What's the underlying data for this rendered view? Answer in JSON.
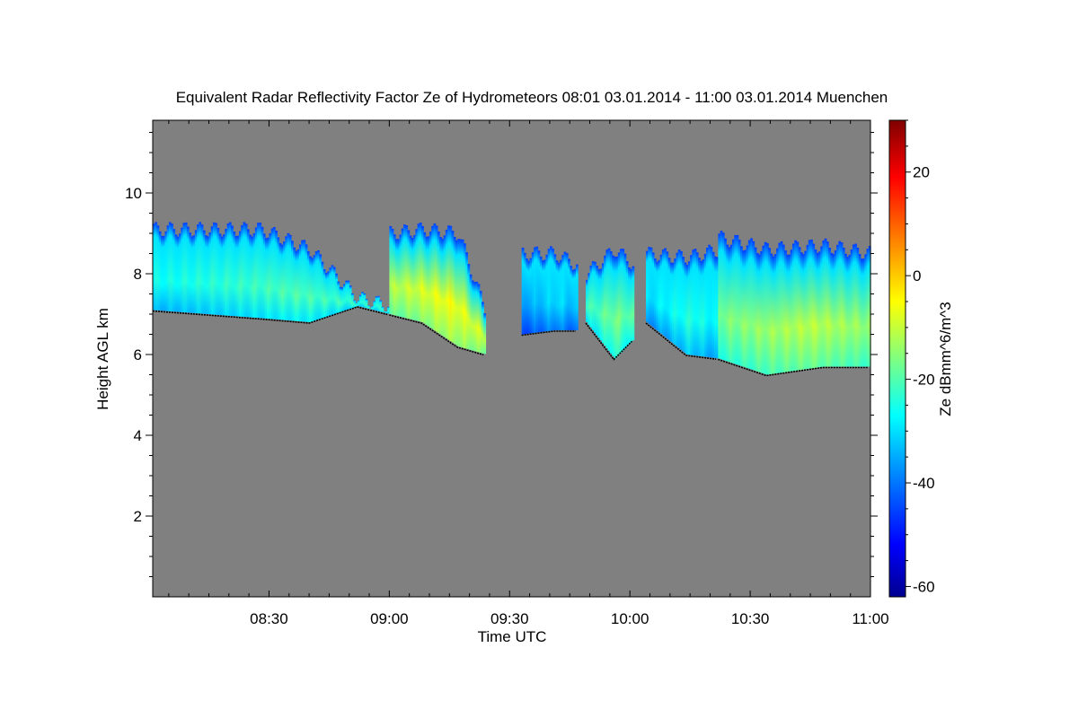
{
  "chart_data": {
    "type": "heatmap",
    "title": "Equivalent Radar Reflectivity Factor Ze of Hydrometeors   08:01 03.01.2014 - 11:00 03.01.2014 Muenchen",
    "xlabel": "Time UTC",
    "ylabel": "Height AGL km",
    "colorbar_label": "Ze dBmm^6/m^3",
    "x_range_minutes": [
      481,
      660
    ],
    "x_ticks": [
      {
        "value": 510,
        "label": "08:30"
      },
      {
        "value": 540,
        "label": "09:00"
      },
      {
        "value": 570,
        "label": "09:30"
      },
      {
        "value": 600,
        "label": "10:00"
      },
      {
        "value": 630,
        "label": "10:30"
      },
      {
        "value": 660,
        "label": "11:00"
      }
    ],
    "ylim": [
      0,
      11.8
    ],
    "y_ticks": [
      {
        "value": 2,
        "label": "2"
      },
      {
        "value": 4,
        "label": "4"
      },
      {
        "value": 6,
        "label": "6"
      },
      {
        "value": 8,
        "label": "8"
      },
      {
        "value": 10,
        "label": "10"
      }
    ],
    "colorbar_range": [
      -62,
      30
    ],
    "colorbar_ticks": [
      {
        "value": -60,
        "label": "-60"
      },
      {
        "value": -40,
        "label": "-40"
      },
      {
        "value": -20,
        "label": "-20"
      },
      {
        "value": 0,
        "label": "0"
      },
      {
        "value": 20,
        "label": "20"
      }
    ],
    "background_color": "#808080",
    "colormap": [
      "#00008f",
      "#0000ff",
      "#0080ff",
      "#00ffff",
      "#80ff80",
      "#ffff00",
      "#ff8000",
      "#ff0000",
      "#800000"
    ],
    "cloud_segments": [
      {
        "x": [
          481,
          508,
          520,
          532,
          540
        ],
        "bottom": [
          7.1,
          6.9,
          6.8,
          7.2,
          7.0
        ],
        "top": [
          9.1,
          9.1,
          8.6,
          7.4,
          7.2
        ],
        "peak_ze": -18
      },
      {
        "x": [
          540,
          548,
          557,
          564
        ],
        "bottom": [
          7.0,
          6.8,
          6.2,
          6.0
        ],
        "top": [
          9.0,
          9.1,
          9.0,
          7.0
        ],
        "peak_ze": -3
      },
      {
        "x": [
          573,
          581,
          587
        ],
        "bottom": [
          6.5,
          6.6,
          6.6
        ],
        "top": [
          8.5,
          8.5,
          8.2
        ],
        "peak_ze": -28
      },
      {
        "x": [
          589,
          596,
          601
        ],
        "bottom": [
          6.8,
          5.9,
          6.4
        ],
        "top": [
          8.0,
          8.6,
          8.2
        ],
        "peak_ze": -14
      },
      {
        "x": [
          604,
          614,
          622
        ],
        "bottom": [
          6.8,
          6.0,
          5.9
        ],
        "top": [
          8.5,
          8.4,
          8.6
        ],
        "peak_ze": -22
      },
      {
        "x": [
          622,
          634,
          648,
          660
        ],
        "bottom": [
          5.9,
          5.5,
          5.7,
          5.7
        ],
        "top": [
          8.9,
          8.6,
          8.7,
          8.5
        ],
        "peak_ze": -8
      }
    ]
  }
}
